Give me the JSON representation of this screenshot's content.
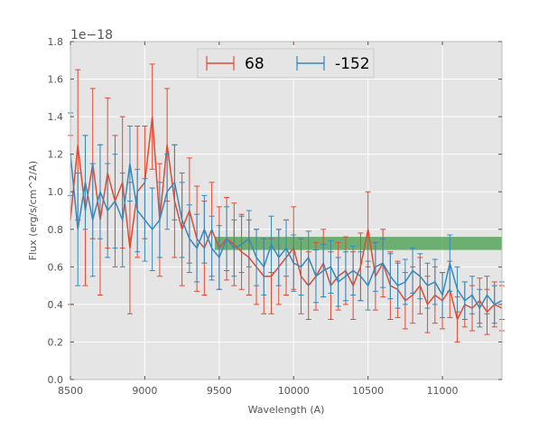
{
  "chart_data": {
    "type": "line",
    "xlabel": "Wavelength (A)",
    "ylabel": "Flux (erg/s/cm^2/A)",
    "y_offset_label": "1e−18",
    "xlim": [
      8500,
      11400
    ],
    "ylim": [
      0.0,
      1.8
    ],
    "x_ticks": [
      8500,
      9000,
      9500,
      10000,
      10500,
      11000
    ],
    "x_tick_labels": [
      "8500",
      "9000",
      "9500",
      "10000",
      "10500",
      "11000"
    ],
    "y_ticks": [
      0.0,
      0.2,
      0.4,
      0.6,
      0.8,
      1.0,
      1.2,
      1.4,
      1.6,
      1.8
    ],
    "y_tick_labels": [
      "0.0",
      "0.2",
      "0.4",
      "0.6",
      "0.8",
      "1.0",
      "1.2",
      "1.4",
      "1.6",
      "1.8"
    ],
    "grid": true,
    "legend_position": "top-center",
    "background": "#e5e5e5",
    "band": {
      "x_start": 9470,
      "x_end": 11400,
      "y_low": 0.69,
      "y_high": 0.76,
      "color": "#58a65c"
    },
    "series": [
      {
        "name": "68",
        "color": "#e24a33",
        "x": [
          8500,
          8550,
          8600,
          8650,
          8700,
          8750,
          8800,
          8850,
          8900,
          8950,
          9000,
          9050,
          9100,
          9150,
          9200,
          9250,
          9300,
          9350,
          9400,
          9450,
          9500,
          9550,
          9600,
          9650,
          9700,
          9750,
          9800,
          9850,
          9900,
          9950,
          10000,
          10050,
          10100,
          10150,
          10200,
          10250,
          10300,
          10350,
          10400,
          10450,
          10500,
          10550,
          10600,
          10650,
          10700,
          10750,
          10800,
          10850,
          10900,
          10950,
          11000,
          11050,
          11100,
          11150,
          11200,
          11250,
          11300,
          11350,
          11400
        ],
        "y": [
          0.85,
          1.25,
          0.9,
          1.15,
          0.85,
          1.1,
          0.95,
          1.05,
          0.7,
          1.0,
          1.05,
          1.4,
          0.85,
          1.25,
          0.95,
          0.8,
          0.9,
          0.75,
          0.7,
          0.8,
          0.7,
          0.75,
          0.72,
          0.68,
          0.65,
          0.6,
          0.55,
          0.55,
          0.6,
          0.65,
          0.7,
          0.55,
          0.5,
          0.55,
          0.62,
          0.5,
          0.55,
          0.58,
          0.5,
          0.6,
          0.8,
          0.55,
          0.62,
          0.5,
          0.48,
          0.42,
          0.45,
          0.5,
          0.4,
          0.45,
          0.42,
          0.48,
          0.32,
          0.4,
          0.38,
          0.42,
          0.36,
          0.4,
          0.38
        ],
        "err": [
          0.45,
          0.4,
          0.4,
          0.4,
          0.4,
          0.4,
          0.35,
          0.35,
          0.35,
          0.35,
          0.3,
          0.28,
          0.3,
          0.3,
          0.3,
          0.3,
          0.28,
          0.28,
          0.25,
          0.25,
          0.22,
          0.22,
          0.22,
          0.2,
          0.2,
          0.2,
          0.2,
          0.2,
          0.2,
          0.2,
          0.22,
          0.2,
          0.18,
          0.18,
          0.18,
          0.18,
          0.18,
          0.18,
          0.18,
          0.18,
          0.2,
          0.18,
          0.18,
          0.18,
          0.15,
          0.15,
          0.15,
          0.15,
          0.15,
          0.15,
          0.15,
          0.15,
          0.12,
          0.12,
          0.12,
          0.12,
          0.12,
          0.12,
          0.12
        ]
      },
      {
        "name": "-152",
        "color": "#348abd",
        "x": [
          8500,
          8550,
          8600,
          8650,
          8700,
          8750,
          8800,
          8850,
          8900,
          8950,
          9000,
          9050,
          9100,
          9150,
          9200,
          9250,
          9300,
          9350,
          9400,
          9450,
          9500,
          9550,
          9600,
          9650,
          9700,
          9750,
          9800,
          9850,
          9900,
          9950,
          10000,
          10050,
          10100,
          10150,
          10200,
          10250,
          10300,
          10350,
          10400,
          10450,
          10500,
          10550,
          10600,
          10650,
          10700,
          10750,
          10800,
          10850,
          10900,
          10950,
          11000,
          11050,
          11100,
          11150,
          11200,
          11250,
          11300,
          11350,
          11400
        ],
        "y": [
          1.2,
          0.8,
          1.05,
          0.85,
          1.0,
          0.9,
          0.95,
          0.85,
          1.15,
          0.9,
          0.85,
          0.8,
          0.85,
          1.0,
          1.05,
          0.85,
          0.75,
          0.7,
          0.8,
          0.7,
          0.65,
          0.75,
          0.7,
          0.72,
          0.75,
          0.65,
          0.6,
          0.72,
          0.65,
          0.7,
          0.62,
          0.6,
          0.65,
          0.55,
          0.58,
          0.6,
          0.52,
          0.55,
          0.58,
          0.55,
          0.5,
          0.6,
          0.62,
          0.55,
          0.5,
          0.52,
          0.58,
          0.55,
          0.5,
          0.52,
          0.45,
          0.62,
          0.48,
          0.42,
          0.45,
          0.38,
          0.45,
          0.4,
          0.42
        ],
        "err": [
          0.22,
          0.3,
          0.25,
          0.3,
          0.25,
          0.25,
          0.25,
          0.25,
          0.2,
          0.22,
          0.22,
          0.22,
          0.2,
          0.2,
          0.2,
          0.2,
          0.18,
          0.18,
          0.18,
          0.17,
          0.17,
          0.17,
          0.15,
          0.15,
          0.15,
          0.15,
          0.15,
          0.15,
          0.15,
          0.15,
          0.15,
          0.15,
          0.14,
          0.14,
          0.14,
          0.14,
          0.13,
          0.13,
          0.13,
          0.13,
          0.13,
          0.13,
          0.13,
          0.12,
          0.12,
          0.12,
          0.12,
          0.12,
          0.12,
          0.12,
          0.12,
          0.15,
          0.12,
          0.1,
          0.1,
          0.1,
          0.1,
          0.1,
          0.1
        ]
      }
    ]
  }
}
